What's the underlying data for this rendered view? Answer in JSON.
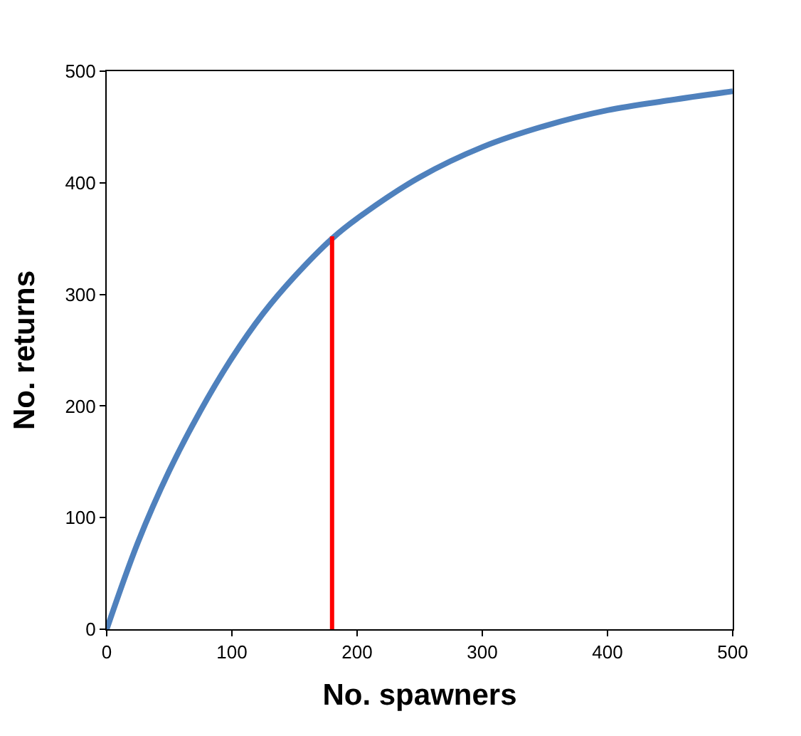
{
  "chart_data": {
    "type": "line",
    "xlabel": "No. spawners",
    "ylabel": "No. returns",
    "x": [
      0,
      25,
      50,
      75,
      100,
      125,
      150,
      180,
      200,
      250,
      300,
      350,
      400,
      450,
      500
    ],
    "series": [
      {
        "color": "#4f81bd",
        "values": [
          0,
          78,
          142,
          196,
          243,
          283,
          316,
          350,
          368,
          405,
          432,
          451,
          465,
          474,
          482
        ]
      },
      {
        "type": "line",
        "color": "#ff0000",
        "x": [
          180,
          180
        ],
        "values": [
          0,
          352
        ]
      }
    ],
    "xlim": [
      0,
      500
    ],
    "xticks": [
      0,
      100,
      200,
      300,
      400,
      500
    ],
    "ylim": [
      0,
      500
    ],
    "yticks": [
      0,
      100,
      200,
      300,
      400,
      500
    ],
    "marker": "none",
    "line_style": "solid"
  }
}
